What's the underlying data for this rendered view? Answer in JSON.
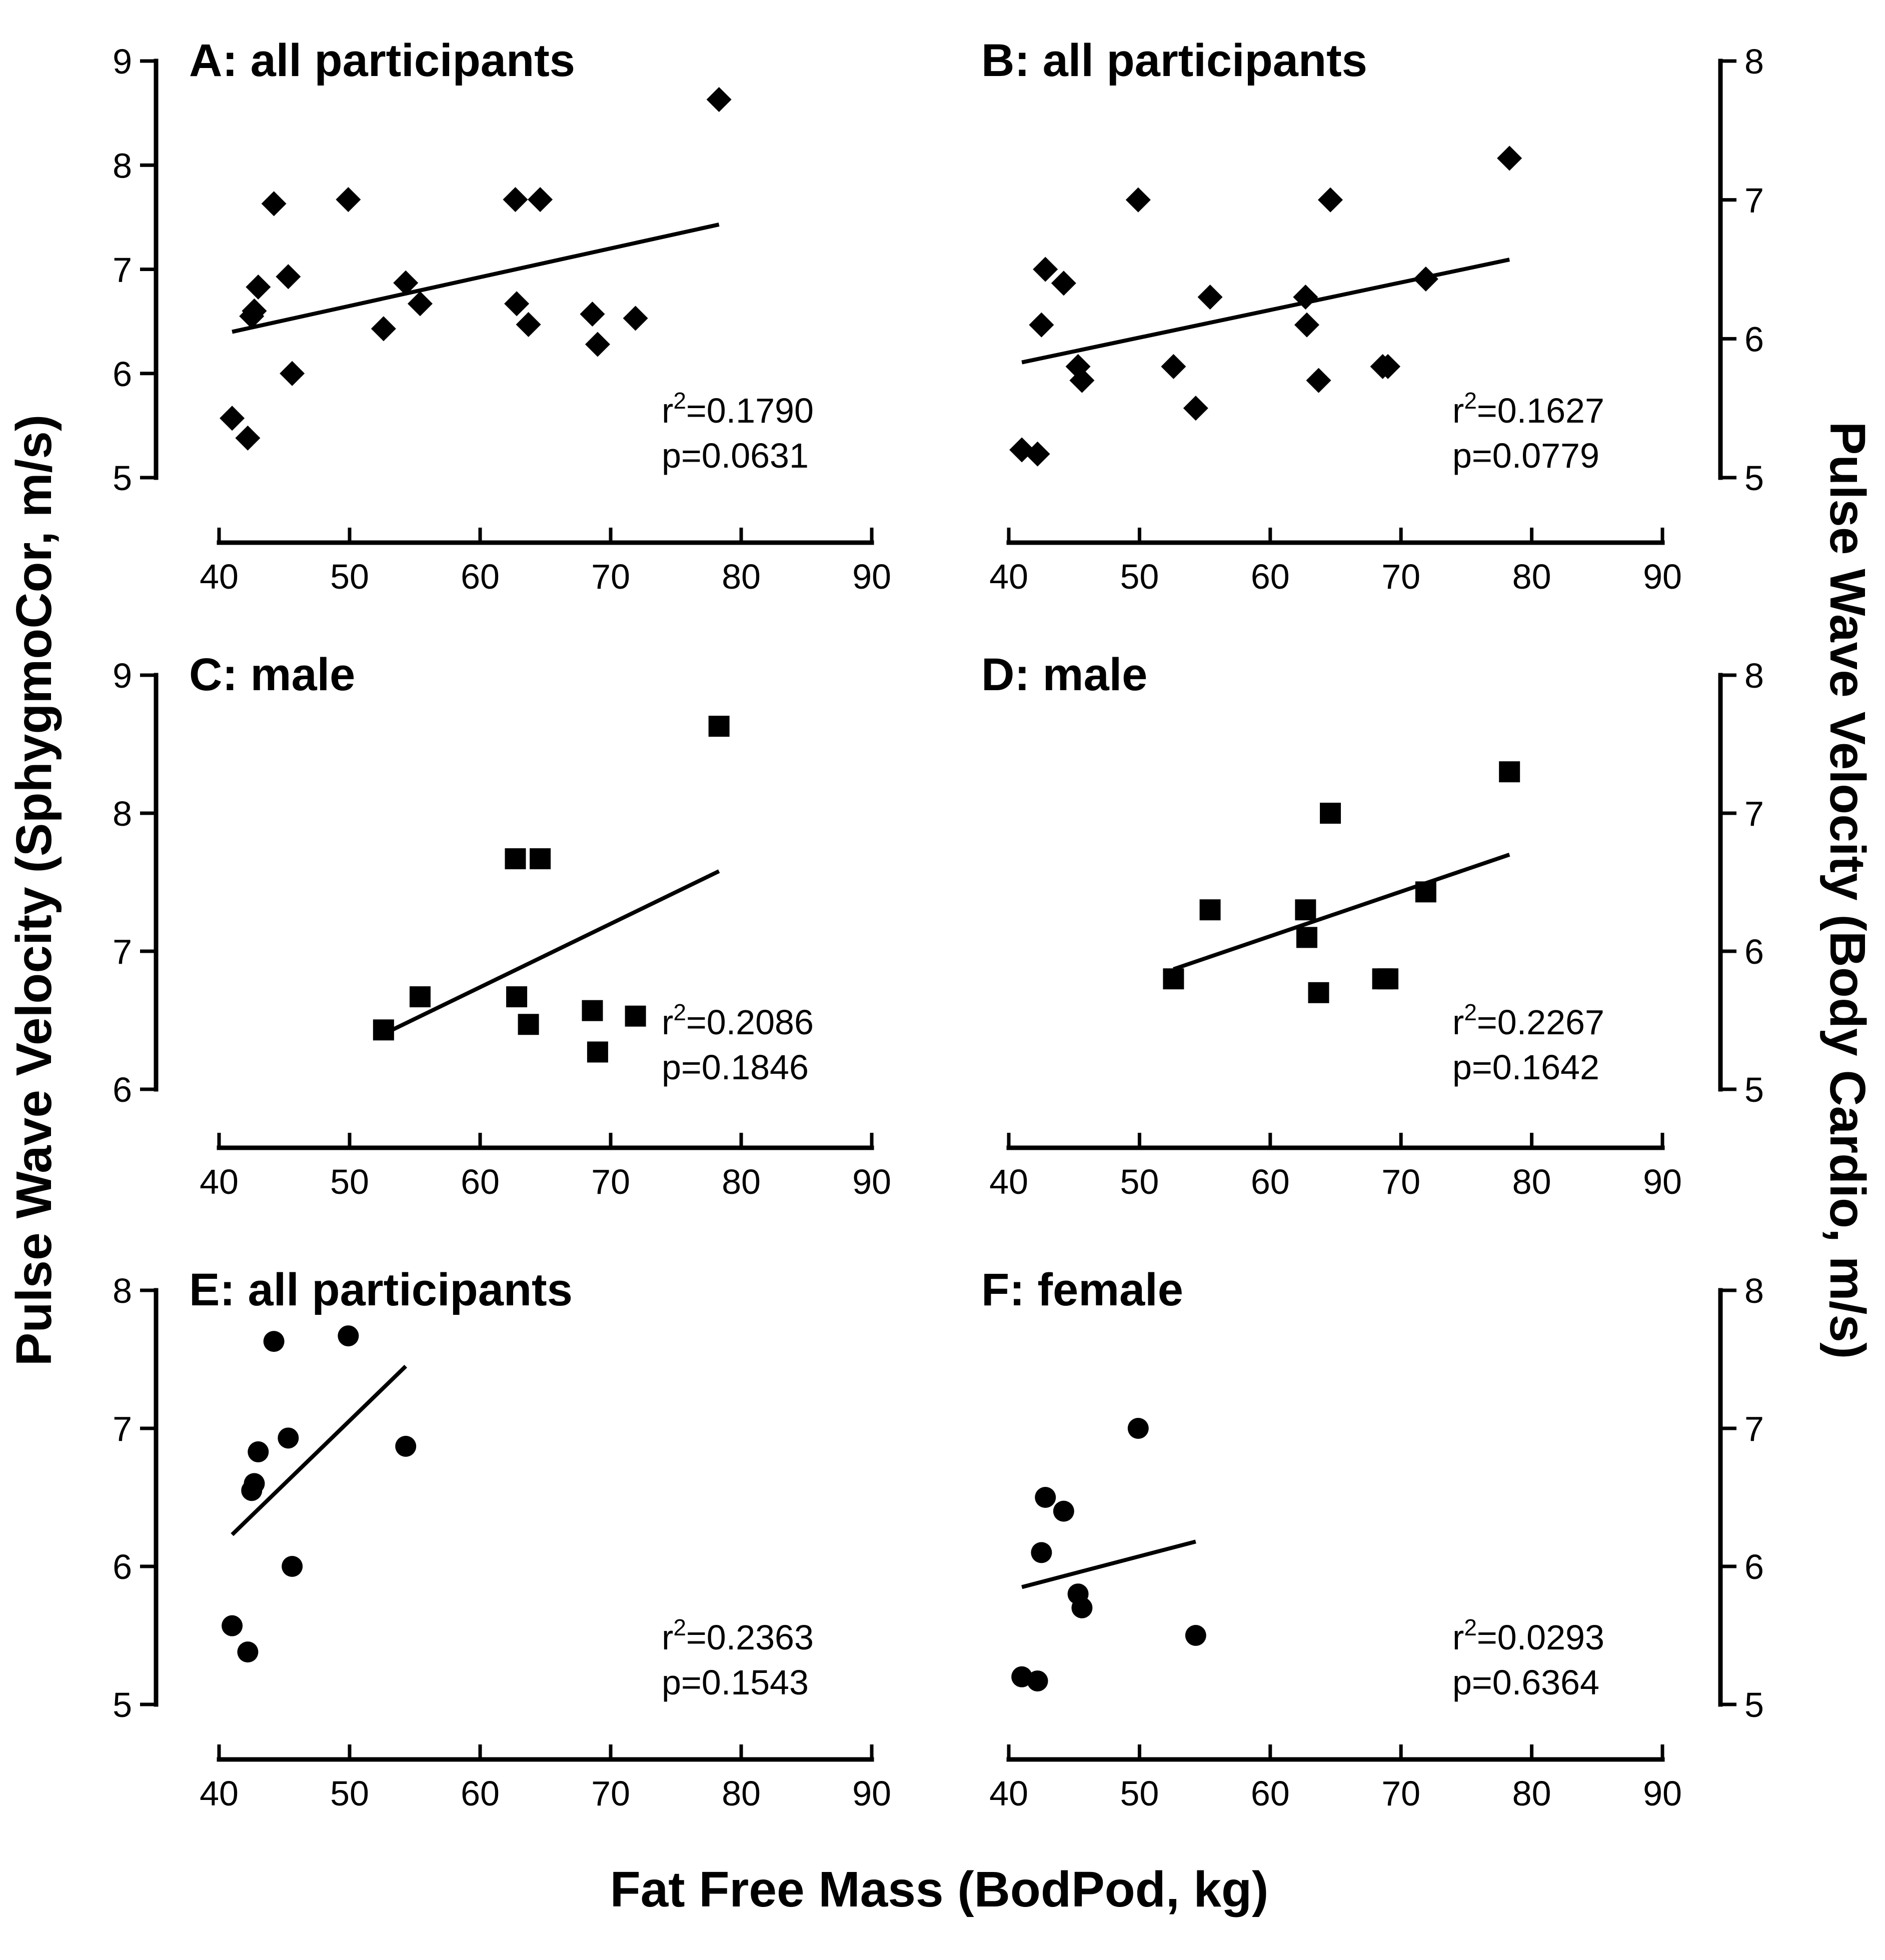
{
  "figure": {
    "y_title_left": "Pulse Wave Velocity (SphygmoCor, m/s)",
    "y_title_right": "Pulse Wave Velocity (Body Cardio, m/s)",
    "x_title": "Fat Free Mass (BodPod, kg)"
  },
  "chart_data": [
    {
      "id": "A",
      "type": "scatter",
      "title": "A: all participants",
      "marker": "diamond",
      "axis_side": "left",
      "xlim": [
        40,
        90
      ],
      "xticks": [
        40,
        50,
        60,
        70,
        80,
        90
      ],
      "ylim": [
        5,
        9
      ],
      "yticks": [
        5,
        6,
        7,
        8,
        9
      ],
      "xlabel": "Fat Free Mass (BodPod, kg)",
      "ylabel": "Pulse Wave Velocity (SphygmoCor, m/s)",
      "points": [
        [
          41.0,
          5.57
        ],
        [
          42.2,
          5.38
        ],
        [
          42.5,
          6.55
        ],
        [
          42.7,
          6.6
        ],
        [
          43.0,
          6.83
        ],
        [
          44.2,
          7.63
        ],
        [
          45.3,
          6.93
        ],
        [
          45.6,
          6.0
        ],
        [
          49.9,
          7.67
        ],
        [
          52.6,
          6.43
        ],
        [
          54.3,
          6.87
        ],
        [
          55.4,
          6.67
        ],
        [
          62.7,
          7.67
        ],
        [
          62.8,
          6.67
        ],
        [
          63.7,
          6.47
        ],
        [
          64.6,
          7.67
        ],
        [
          68.6,
          6.57
        ],
        [
          69.0,
          6.28
        ],
        [
          71.9,
          6.53
        ],
        [
          78.3,
          8.63
        ]
      ],
      "fit": [
        [
          41.0,
          6.4
        ],
        [
          78.3,
          7.43
        ]
      ],
      "stats": {
        "r_label": "r",
        "r_exp": "2",
        "r_value": "=0.1790",
        "p_value": "p=0.0631"
      }
    },
    {
      "id": "B",
      "type": "scatter",
      "title": "B: all participants",
      "marker": "diamond",
      "axis_side": "right",
      "xlim": [
        40,
        90
      ],
      "xticks": [
        40,
        50,
        60,
        70,
        80,
        90
      ],
      "ylim": [
        5,
        8
      ],
      "yticks": [
        5,
        6,
        7,
        8
      ],
      "xlabel": "Fat Free Mass (BodPod, kg)",
      "ylabel": "Pulse Wave Velocity (Body Cardio, m/s)",
      "points": [
        [
          41.0,
          5.2
        ],
        [
          42.2,
          5.17
        ],
        [
          42.5,
          6.1
        ],
        [
          42.8,
          6.5
        ],
        [
          44.2,
          6.4
        ],
        [
          45.3,
          5.8
        ],
        [
          45.6,
          5.7
        ],
        [
          49.9,
          7.0
        ],
        [
          52.6,
          5.8
        ],
        [
          54.3,
          5.5
        ],
        [
          55.4,
          6.3
        ],
        [
          62.7,
          6.3
        ],
        [
          62.8,
          6.1
        ],
        [
          63.7,
          5.7
        ],
        [
          64.6,
          7.0
        ],
        [
          68.6,
          5.8
        ],
        [
          69.0,
          5.8
        ],
        [
          71.9,
          6.43
        ],
        [
          78.3,
          7.3
        ]
      ],
      "fit": [
        [
          41.0,
          5.83
        ],
        [
          78.3,
          6.57
        ]
      ],
      "stats": {
        "r_label": "r",
        "r_exp": "2",
        "r_value": "=0.1627",
        "p_value": "p=0.0779"
      }
    },
    {
      "id": "C",
      "type": "scatter",
      "title": "C: male",
      "marker": "square",
      "axis_side": "left",
      "xlim": [
        40,
        90
      ],
      "xticks": [
        40,
        50,
        60,
        70,
        80,
        90
      ],
      "ylim": [
        6,
        9
      ],
      "yticks": [
        6,
        7,
        8,
        9
      ],
      "xlabel": "Fat Free Mass (BodPod, kg)",
      "ylabel": "Pulse Wave Velocity (SphygmoCor, m/s)",
      "points": [
        [
          52.6,
          6.43
        ],
        [
          55.4,
          6.67
        ],
        [
          62.7,
          7.67
        ],
        [
          62.8,
          6.67
        ],
        [
          63.7,
          6.47
        ],
        [
          64.6,
          7.67
        ],
        [
          68.6,
          6.57
        ],
        [
          69.0,
          6.27
        ],
        [
          71.9,
          6.53
        ],
        [
          78.3,
          8.63
        ]
      ],
      "fit": [
        [
          52.6,
          6.4
        ],
        [
          78.3,
          7.58
        ]
      ],
      "stats": {
        "r_label": "r",
        "r_exp": "2",
        "r_value": "=0.2086",
        "p_value": "p=0.1846"
      }
    },
    {
      "id": "D",
      "type": "scatter",
      "title": "D: male",
      "marker": "square",
      "axis_side": "right",
      "xlim": [
        40,
        90
      ],
      "xticks": [
        40,
        50,
        60,
        70,
        80,
        90
      ],
      "ylim": [
        5,
        8
      ],
      "yticks": [
        5,
        6,
        7,
        8
      ],
      "xlabel": "Fat Free Mass (BodPod, kg)",
      "ylabel": "Pulse Wave Velocity (Body Cardio, m/s)",
      "points": [
        [
          52.6,
          5.8
        ],
        [
          55.4,
          6.3
        ],
        [
          62.7,
          6.3
        ],
        [
          62.8,
          6.1
        ],
        [
          63.7,
          5.7
        ],
        [
          64.6,
          7.0
        ],
        [
          68.6,
          5.8
        ],
        [
          69.0,
          5.8
        ],
        [
          71.9,
          6.43
        ],
        [
          78.3,
          7.3
        ]
      ],
      "fit": [
        [
          52.6,
          5.87
        ],
        [
          78.3,
          6.7
        ]
      ],
      "stats": {
        "r_label": "r",
        "r_exp": "2",
        "r_value": "=0.2267",
        "p_value": "p=0.1642"
      }
    },
    {
      "id": "E",
      "type": "scatter",
      "title": "E: all participants",
      "marker": "circle",
      "axis_side": "left",
      "xlim": [
        40,
        90
      ],
      "xticks": [
        40,
        50,
        60,
        70,
        80,
        90
      ],
      "ylim": [
        5,
        8
      ],
      "yticks": [
        5,
        6,
        7,
        8
      ],
      "xlabel": "Fat Free Mass (BodPod, kg)",
      "ylabel": "Pulse Wave Velocity (SphygmoCor, m/s)",
      "points": [
        [
          41.0,
          5.57
        ],
        [
          42.2,
          5.38
        ],
        [
          42.5,
          6.55
        ],
        [
          42.7,
          6.6
        ],
        [
          43.0,
          6.83
        ],
        [
          44.2,
          7.63
        ],
        [
          45.3,
          6.93
        ],
        [
          45.6,
          6.0
        ],
        [
          49.9,
          7.67
        ],
        [
          54.3,
          6.87
        ]
      ],
      "fit": [
        [
          41.0,
          6.23
        ],
        [
          54.3,
          7.45
        ]
      ],
      "stats": {
        "r_label": "r",
        "r_exp": "2",
        "r_value": "=0.2363",
        "p_value": "p=0.1543"
      }
    },
    {
      "id": "F",
      "type": "scatter",
      "title": "F: female",
      "marker": "circle",
      "axis_side": "right",
      "xlim": [
        40,
        90
      ],
      "xticks": [
        40,
        50,
        60,
        70,
        80,
        90
      ],
      "ylim": [
        5,
        8
      ],
      "yticks": [
        5,
        6,
        7,
        8
      ],
      "xlabel": "Fat Free Mass (BodPod, kg)",
      "ylabel": "Pulse Wave Velocity (Body Cardio, m/s)",
      "points": [
        [
          41.0,
          5.2
        ],
        [
          42.2,
          5.17
        ],
        [
          42.5,
          6.1
        ],
        [
          42.8,
          6.5
        ],
        [
          44.2,
          6.4
        ],
        [
          45.3,
          5.8
        ],
        [
          45.6,
          5.7
        ],
        [
          49.9,
          7.0
        ],
        [
          54.3,
          5.5
        ]
      ],
      "fit": [
        [
          41.0,
          5.85
        ],
        [
          54.3,
          6.18
        ]
      ],
      "stats": {
        "r_label": "r",
        "r_exp": "2",
        "r_value": "=0.0293",
        "p_value": "p=0.6364"
      }
    }
  ]
}
